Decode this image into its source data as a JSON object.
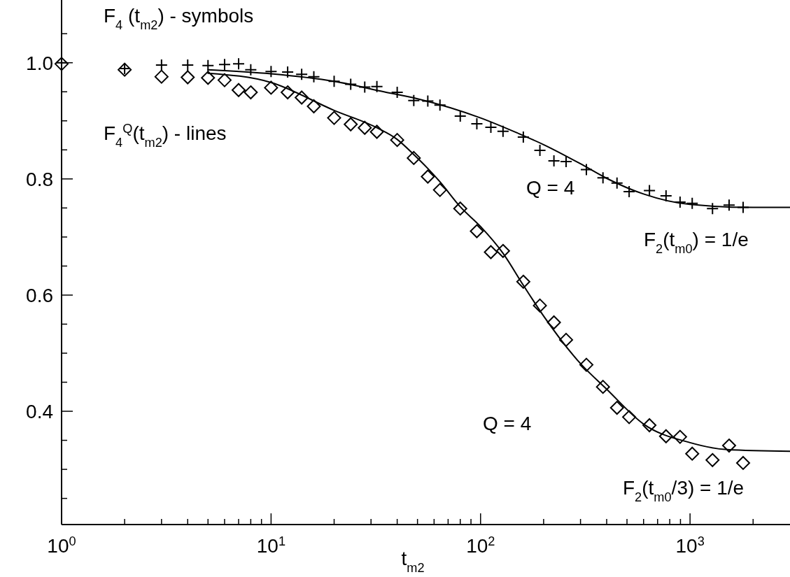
{
  "chart_data": {
    "type": "scatter",
    "xlabel": "t$_{m2}$",
    "log": "x",
    "xlim": [
      1,
      3000
    ],
    "ylim": [
      0.205,
      1.108
    ],
    "xticks": [
      {
        "value": 1,
        "label": "10$^{0}$"
      },
      {
        "value": 2,
        "label": null
      },
      {
        "value": 3,
        "label": null
      },
      {
        "value": 4,
        "label": null
      },
      {
        "value": 5,
        "label": null
      },
      {
        "value": 6,
        "label": null
      },
      {
        "value": 7,
        "label": null
      },
      {
        "value": 8,
        "label": null
      },
      {
        "value": 9,
        "label": null
      },
      {
        "value": 10,
        "label": "10$^{1}$"
      },
      {
        "value": 20,
        "label": null
      },
      {
        "value": 30,
        "label": null
      },
      {
        "value": 40,
        "label": null
      },
      {
        "value": 50,
        "label": null
      },
      {
        "value": 60,
        "label": null
      },
      {
        "value": 70,
        "label": null
      },
      {
        "value": 80,
        "label": null
      },
      {
        "value": 90,
        "label": null
      },
      {
        "value": 100,
        "label": "10$^{2}$"
      },
      {
        "value": 200,
        "label": null
      },
      {
        "value": 300,
        "label": null
      },
      {
        "value": 400,
        "label": null
      },
      {
        "value": 500,
        "label": null
      },
      {
        "value": 600,
        "label": null
      },
      {
        "value": 700,
        "label": null
      },
      {
        "value": 800,
        "label": null
      },
      {
        "value": 900,
        "label": null
      },
      {
        "value": 1000,
        "label": "10$^{3}$"
      },
      {
        "value": 2000,
        "label": null
      }
    ],
    "yticks": [
      {
        "value": 0.25,
        "label": null
      },
      {
        "value": 0.3,
        "label": null
      },
      {
        "value": 0.35,
        "label": null
      },
      {
        "value": 0.4,
        "label": "0.4"
      },
      {
        "value": 0.45,
        "label": null
      },
      {
        "value": 0.5,
        "label": null
      },
      {
        "value": 0.55,
        "label": null
      },
      {
        "value": 0.6,
        "label": "0.6"
      },
      {
        "value": 0.65,
        "label": null
      },
      {
        "value": 0.7,
        "label": null
      },
      {
        "value": 0.75,
        "label": null
      },
      {
        "value": 0.8,
        "label": "0.8"
      },
      {
        "value": 0.85,
        "label": null
      },
      {
        "value": 0.9,
        "label": null
      },
      {
        "value": 0.95,
        "label": null
      },
      {
        "value": 1.0,
        "label": "1.0"
      },
      {
        "value": 1.05,
        "label": null
      }
    ],
    "grid": false,
    "series": [
      {
        "type": "scatter",
        "marker": "cross",
        "color": "#000000",
        "x": [
          1,
          2,
          3,
          4,
          5,
          6,
          7,
          8,
          10,
          12,
          14,
          16,
          20,
          24,
          28,
          32,
          40,
          48,
          56,
          64,
          80,
          96,
          112,
          128,
          160,
          192,
          224,
          256,
          320,
          384,
          448,
          512,
          640,
          768,
          896,
          1024,
          1280,
          1536,
          1792
        ],
        "values": [
          1.0,
          0.99,
          0.996,
          0.996,
          0.995,
          0.997,
          0.998,
          0.988,
          0.985,
          0.984,
          0.98,
          0.976,
          0.968,
          0.963,
          0.958,
          0.959,
          0.949,
          0.935,
          0.934,
          0.927,
          0.908,
          0.895,
          0.889,
          0.882,
          0.872,
          0.849,
          0.831,
          0.83,
          0.816,
          0.802,
          0.793,
          0.778,
          0.78,
          0.771,
          0.76,
          0.758,
          0.749,
          0.755,
          0.751
        ]
      },
      {
        "type": "scatter",
        "marker": "diamond",
        "color": "#000000",
        "x": [
          1,
          2,
          3,
          4,
          5,
          6,
          7,
          8,
          10,
          12,
          14,
          16,
          20,
          24,
          28,
          32,
          40,
          48,
          56,
          64,
          80,
          96,
          112,
          128,
          160,
          192,
          224,
          256,
          320,
          384,
          448,
          512,
          640,
          768,
          896,
          1024,
          1280,
          1536,
          1792
        ],
        "values": [
          0.998,
          0.988,
          0.976,
          0.975,
          0.974,
          0.97,
          0.953,
          0.949,
          0.957,
          0.949,
          0.94,
          0.925,
          0.905,
          0.894,
          0.888,
          0.881,
          0.867,
          0.836,
          0.804,
          0.781,
          0.749,
          0.71,
          0.674,
          0.676,
          0.623,
          0.582,
          0.553,
          0.523,
          0.48,
          0.442,
          0.406,
          0.39,
          0.376,
          0.357,
          0.356,
          0.327,
          0.316,
          0.341,
          0.311
        ]
      },
      {
        "type": "line",
        "marker": "none",
        "line_style": "solid",
        "color": "#000000",
        "x": [
          5,
          10,
          20,
          34.6,
          50,
          100,
          150,
          200,
          300,
          400,
          600,
          1000,
          2000,
          3000
        ],
        "values": [
          0.988,
          0.981,
          0.968,
          0.95,
          0.938,
          0.905,
          0.879,
          0.859,
          0.826,
          0.801,
          0.774,
          0.756,
          0.751,
          0.751
        ]
      },
      {
        "type": "line",
        "marker": "none",
        "line_style": "solid",
        "color": "#000000",
        "x": [
          5,
          10,
          20,
          32,
          40,
          48,
          56,
          64,
          80,
          100,
          128,
          160,
          200,
          300,
          400,
          600,
          1000,
          1500,
          3000
        ],
        "values": [
          0.982,
          0.966,
          0.918,
          0.888,
          0.868,
          0.842,
          0.818,
          0.795,
          0.752,
          0.718,
          0.672,
          0.617,
          0.564,
          0.482,
          0.438,
          0.378,
          0.346,
          0.334,
          0.331
        ]
      }
    ],
    "annotations": [
      "F$_{4}$ (t$_{m2}$) - symbols",
      "F$_{4}$$^{Q}$(t$_{m2}$) - lines",
      "Q = 4",
      "Q = 4",
      "F$_{2}$(t$_{m0}$) = 1/e",
      "F$_{2}$(t$_{m0}$/3) = 1/e"
    ]
  }
}
